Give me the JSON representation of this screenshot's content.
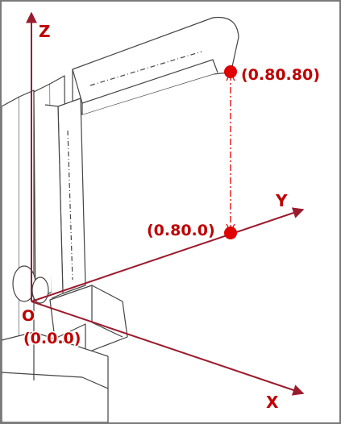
{
  "axes": {
    "z_label": "Z",
    "y_label": "Y",
    "x_label": "X",
    "origin_label": "O"
  },
  "points": {
    "origin_coord": "(0.0.0)",
    "top_point_coord": "(0.80.80)",
    "mid_point_coord": "(0.80.0)"
  },
  "colors": {
    "axis": "#9b1b2e",
    "point": "#e00000",
    "label": "#c00000",
    "robot_line": "#444444",
    "frame": "#7a7a7a"
  }
}
